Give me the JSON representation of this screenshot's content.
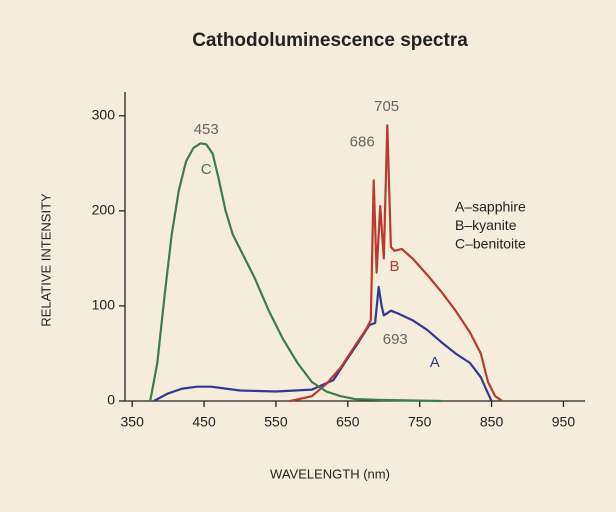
{
  "chart_data": {
    "type": "line",
    "title": "Cathodoluminescence spectra",
    "x_label": "WAVELENGTH (nm)",
    "y_label": "RELATIVE INTENSITY",
    "xlim": [
      340,
      980
    ],
    "ylim": [
      0,
      325
    ],
    "xticks": [
      350,
      450,
      550,
      650,
      750,
      850,
      950
    ],
    "yticks": [
      0,
      100,
      200,
      300
    ],
    "legend": "right",
    "series": [
      {
        "name": "A–sapphire",
        "color": "#2f3b8f",
        "x": [
          380,
          400,
          420,
          440,
          460,
          480,
          500,
          550,
          600,
          630,
          650,
          665,
          680,
          688,
          693,
          697,
          700,
          710,
          720,
          740,
          760,
          780,
          800,
          820,
          835,
          845,
          850
        ],
        "values": [
          0,
          8,
          13,
          15,
          15,
          13,
          11,
          10,
          12,
          22,
          45,
          62,
          80,
          82,
          120,
          100,
          90,
          95,
          92,
          85,
          75,
          62,
          50,
          40,
          25,
          8,
          0
        ]
      },
      {
        "name": "B–kyanite",
        "color": "#b63b30",
        "x": [
          570,
          600,
          620,
          640,
          660,
          675,
          682,
          686,
          690,
          695,
          700,
          705,
          710,
          715,
          725,
          740,
          760,
          780,
          800,
          820,
          835,
          845,
          855,
          865
        ],
        "values": [
          0,
          5,
          18,
          35,
          58,
          75,
          85,
          232,
          135,
          205,
          150,
          290,
          162,
          158,
          160,
          150,
          133,
          115,
          95,
          72,
          50,
          20,
          5,
          0
        ]
      },
      {
        "name": "C–benitoite",
        "color": "#3c7d4c",
        "x": [
          375,
          385,
          395,
          405,
          415,
          425,
          435,
          445,
          453,
          462,
          470,
          480,
          490,
          500,
          520,
          540,
          560,
          580,
          600,
          620,
          640,
          660,
          700,
          780
        ],
        "values": [
          0,
          40,
          110,
          175,
          222,
          252,
          266,
          271,
          270,
          260,
          235,
          200,
          175,
          160,
          130,
          95,
          65,
          40,
          20,
          10,
          5,
          2,
          1,
          0
        ]
      }
    ],
    "annotations": [
      {
        "label": "453",
        "x": 453,
        "y": 285,
        "color": "#666"
      },
      {
        "label": "705",
        "x": 704,
        "y": 309,
        "color": "#666"
      },
      {
        "label": "686",
        "x": 670,
        "y": 272,
        "color": "#666"
      },
      {
        "label": "693",
        "x": 716,
        "y": 64,
        "color": "#666"
      },
      {
        "label": "C",
        "x": 453,
        "y": 243,
        "color": "#3c7d4c"
      },
      {
        "label": "B",
        "x": 715,
        "y": 141,
        "color": "#b63b30"
      },
      {
        "label": "A",
        "x": 771,
        "y": 40,
        "color": "#2f3b8f"
      }
    ]
  }
}
